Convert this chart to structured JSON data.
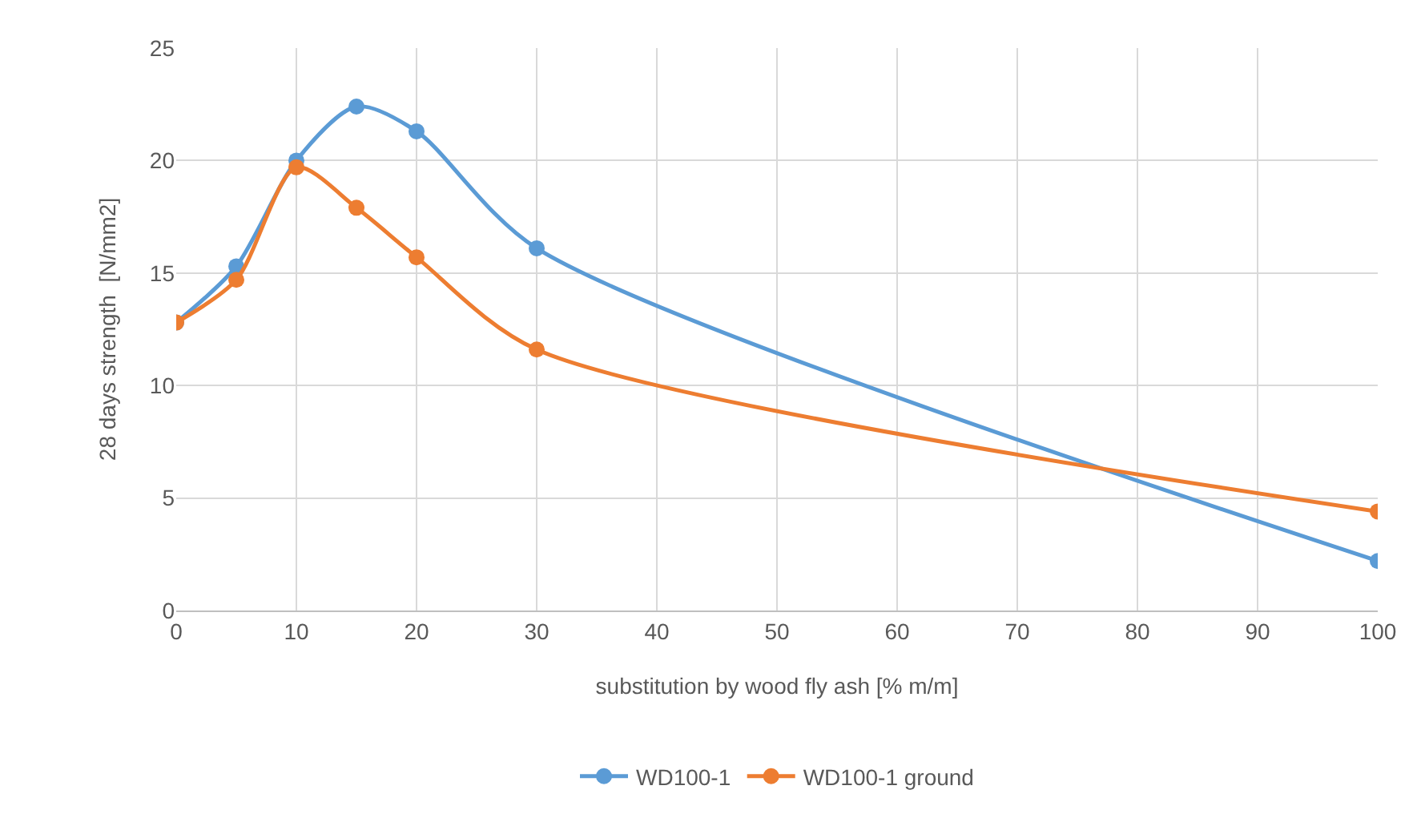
{
  "chart_data": {
    "type": "line",
    "xlabel": "substitution by wood fly ash [% m/m]",
    "ylabel": "28 days strength  [N/mm2]",
    "x": [
      0,
      5,
      10,
      15,
      20,
      30,
      100
    ],
    "series": [
      {
        "name": "WD100-1",
        "color": "#5b9bd5",
        "values": [
          12.8,
          15.3,
          20.0,
          22.4,
          21.3,
          16.1,
          2.2
        ]
      },
      {
        "name": "WD100-1 ground",
        "color": "#ed7d31",
        "values": [
          12.8,
          14.7,
          19.7,
          17.9,
          15.7,
          11.6,
          4.4
        ]
      }
    ],
    "xlim": [
      0,
      100
    ],
    "xticks": [
      0,
      10,
      20,
      30,
      40,
      50,
      60,
      70,
      80,
      90,
      100
    ],
    "ylim": [
      0,
      25
    ],
    "yticks": [
      0,
      5,
      10,
      15,
      20,
      25
    ],
    "grid": true,
    "legend": "bottom",
    "marker": "circle",
    "line_style": "solid"
  }
}
